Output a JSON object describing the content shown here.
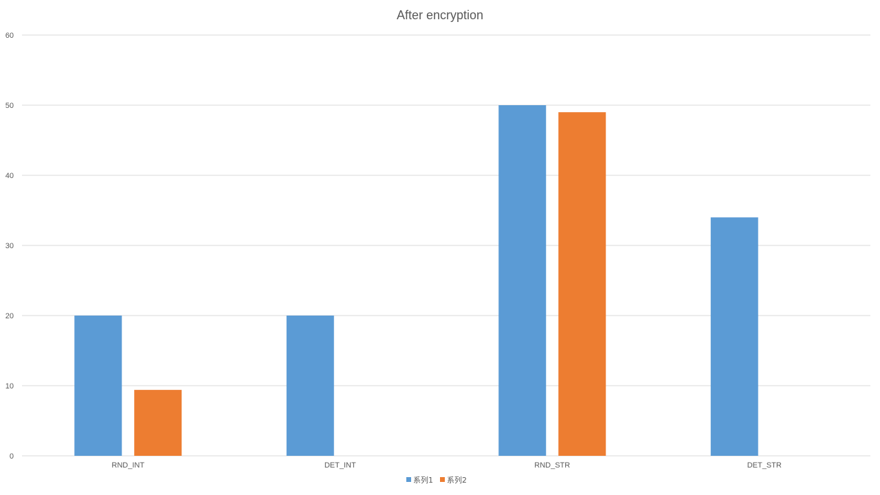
{
  "chart_data": {
    "type": "bar",
    "title": "After encryption",
    "xlabel": "",
    "ylabel": "",
    "categories": [
      "RND_INT",
      "DET_INT",
      "RND_STR",
      "DET_STR"
    ],
    "series": [
      {
        "name": "系列1",
        "values": [
          20,
          20,
          50,
          34
        ]
      },
      {
        "name": "系列2",
        "values": [
          9.4,
          0,
          49,
          0
        ]
      }
    ],
    "ylim": [
      0,
      60
    ],
    "yticks": [
      0,
      10,
      20,
      30,
      40,
      50,
      60
    ],
    "grid": true,
    "legend_position": "bottom"
  },
  "colors": {
    "series": [
      "#5b9bd5",
      "#ed7d31"
    ],
    "grid": "#d9d9d9",
    "text": "#595959"
  }
}
